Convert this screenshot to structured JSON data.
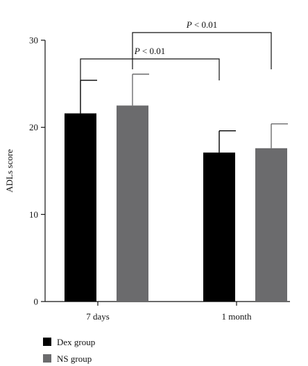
{
  "chart_data": {
    "type": "bar",
    "ylabel": "ADLs score",
    "ylim": [
      0,
      30
    ],
    "yticks": [
      "0",
      "10",
      "20",
      "30"
    ],
    "categories": [
      "7 days",
      "1 month"
    ],
    "series": [
      {
        "name": "Dex group",
        "color": "#000000",
        "values": [
          21.6,
          17.1
        ],
        "errors": [
          3.8,
          2.5
        ]
      },
      {
        "name": "NS group",
        "color": "#6b6b6d",
        "values": [
          22.5,
          17.6
        ],
        "errors": [
          3.6,
          2.8
        ]
      }
    ],
    "annotations": [
      {
        "label_italic": "P",
        "label_rest": " < 0.01",
        "from": "7 days / Dex group",
        "to": "1 month / Dex group"
      },
      {
        "label_italic": "P",
        "label_rest": " < 0.01",
        "from": "7 days / NS group",
        "to": "1 month / NS group"
      }
    ],
    "legend_position": "bottom-left",
    "grid": false
  }
}
